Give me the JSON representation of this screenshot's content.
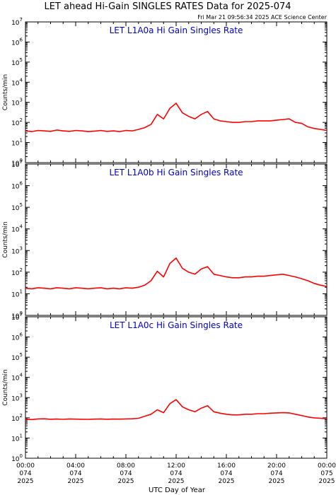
{
  "page": {
    "title": "LET ahead Hi-Gain SINGLES RATES Data for 2025-074",
    "timestamp": "Fri Mar 21 09:56:34 2025 ACE Science Center",
    "xlabel": "UTC Day of Year",
    "x_ticks": [
      {
        "time": "00:00",
        "day": "074",
        "year": "2025"
      },
      {
        "time": "04:00",
        "day": "074",
        "year": "2025"
      },
      {
        "time": "08:00",
        "day": "074",
        "year": "2025"
      },
      {
        "time": "12:00",
        "day": "074",
        "year": "2025"
      },
      {
        "time": "16:00",
        "day": "074",
        "year": "2025"
      },
      {
        "time": "20:00",
        "day": "074",
        "year": "2025"
      },
      {
        "time": "00:00",
        "day": "075",
        "year": "2025"
      }
    ]
  },
  "colors": {
    "series": "#ff0000",
    "panel_title": "#0000cc",
    "axes": "#000000"
  },
  "chart_data": [
    {
      "type": "line",
      "title": "LET L1A0a Hi Gain Singles Rate",
      "ylabel": "Counts/min",
      "yscale": "log",
      "ylim": [
        1,
        10000000
      ],
      "xlim": [
        0,
        24
      ],
      "x_unit": "hours UTC",
      "y_tick_labels": [
        "10^0",
        "10^1",
        "10^2",
        "10^3",
        "10^4",
        "10^5",
        "10^6",
        "10^7"
      ],
      "x": [
        0,
        0.5,
        1,
        1.5,
        2,
        2.5,
        3,
        3.5,
        4,
        4.5,
        5,
        5.5,
        6,
        6.5,
        7,
        7.5,
        8,
        8.5,
        9,
        9.5,
        10,
        10.5,
        11,
        11.5,
        12,
        12.5,
        13,
        13.5,
        14,
        14.5,
        15,
        15.5,
        16,
        16.5,
        17,
        17.5,
        18,
        18.5,
        19,
        19.5,
        20,
        20.5,
        21,
        21.5,
        22,
        22.5,
        23,
        23.5,
        24
      ],
      "values": [
        38,
        35,
        40,
        38,
        36,
        42,
        38,
        36,
        40,
        38,
        35,
        37,
        40,
        36,
        38,
        35,
        40,
        38,
        45,
        55,
        80,
        250,
        150,
        500,
        900,
        300,
        200,
        150,
        250,
        350,
        150,
        120,
        110,
        100,
        100,
        110,
        110,
        120,
        120,
        120,
        130,
        140,
        150,
        100,
        90,
        60,
        50,
        45,
        40
      ]
    },
    {
      "type": "line",
      "title": "LET L1A0b Hi Gain Singles Rate",
      "ylabel": "Counts/min",
      "yscale": "log",
      "ylim": [
        1,
        10000000
      ],
      "xlim": [
        0,
        24
      ],
      "x_unit": "hours UTC",
      "y_tick_labels": [
        "10^0",
        "10^1",
        "10^2",
        "10^3",
        "10^4",
        "10^5",
        "10^6",
        "10^7"
      ],
      "x": [
        0,
        0.5,
        1,
        1.5,
        2,
        2.5,
        3,
        3.5,
        4,
        4.5,
        5,
        5.5,
        6,
        6.5,
        7,
        7.5,
        8,
        8.5,
        9,
        9.5,
        10,
        10.5,
        11,
        11.5,
        12,
        12.5,
        13,
        13.5,
        14,
        14.5,
        15,
        15.5,
        16,
        16.5,
        17,
        17.5,
        18,
        18.5,
        19,
        19.5,
        20,
        20.5,
        21,
        21.5,
        22,
        22.5,
        23,
        23.5,
        24
      ],
      "values": [
        18,
        17,
        19,
        18,
        17,
        19,
        18,
        17,
        19,
        18,
        17,
        18,
        19,
        17,
        18,
        17,
        19,
        18,
        20,
        25,
        40,
        110,
        60,
        250,
        450,
        150,
        100,
        80,
        140,
        180,
        80,
        70,
        60,
        55,
        55,
        60,
        60,
        65,
        65,
        70,
        75,
        80,
        70,
        60,
        50,
        40,
        30,
        25,
        22
      ]
    },
    {
      "type": "line",
      "title": "LET L1A0c Hi Gain Singles Rate",
      "ylabel": "Counts/min",
      "yscale": "log",
      "ylim": [
        1,
        10000000
      ],
      "xlim": [
        0,
        24
      ],
      "x_unit": "hours UTC",
      "y_tick_labels": [
        "10^0",
        "10^1",
        "10^2",
        "10^3",
        "10^4",
        "10^5",
        "10^6",
        "10^7"
      ],
      "x": [
        0,
        0.5,
        1,
        1.5,
        2,
        2.5,
        3,
        3.5,
        4,
        4.5,
        5,
        5.5,
        6,
        6.5,
        7,
        7.5,
        8,
        8.5,
        9,
        9.5,
        10,
        10.5,
        11,
        11.5,
        12,
        12.5,
        13,
        13.5,
        14,
        14.5,
        15,
        15.5,
        16,
        16.5,
        17,
        17.5,
        18,
        18.5,
        19,
        19.5,
        20,
        20.5,
        21,
        21.5,
        22,
        22.5,
        23,
        23.5,
        24
      ],
      "values": [
        85,
        82,
        88,
        90,
        85,
        87,
        84,
        88,
        86,
        85,
        84,
        86,
        88,
        85,
        87,
        86,
        88,
        90,
        95,
        120,
        150,
        250,
        180,
        500,
        800,
        350,
        250,
        200,
        300,
        400,
        200,
        170,
        150,
        140,
        140,
        150,
        150,
        160,
        160,
        170,
        175,
        180,
        175,
        150,
        130,
        110,
        100,
        95,
        90
      ]
    }
  ]
}
